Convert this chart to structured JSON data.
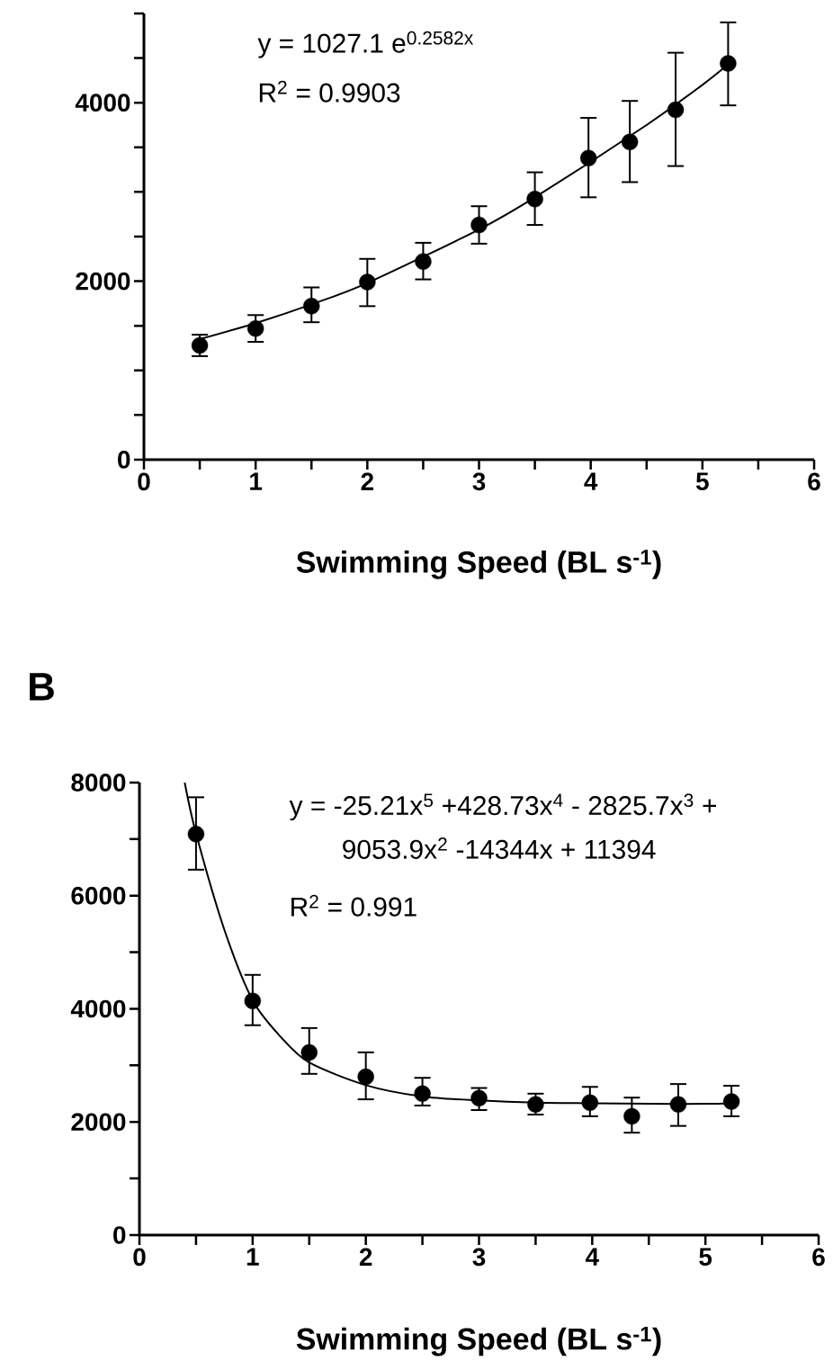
{
  "chart_data": [
    {
      "type": "scatter",
      "xlabel": "Swimming Speed (BL s$^{-1}$)",
      "xlim": [
        0,
        6
      ],
      "xticks": [
        0,
        {
          "value": 0.5,
          "label": null
        },
        1,
        {
          "value": 1.5,
          "label": null
        },
        2,
        {
          "value": 2.5,
          "label": null
        },
        3,
        {
          "value": 3.5,
          "label": null
        },
        4,
        {
          "value": 4.5,
          "label": null
        },
        5,
        {
          "value": 5.5,
          "label": null
        },
        6
      ],
      "ylim": [
        0,
        5000
      ],
      "yticks": [
        0,
        {
          "value": 500,
          "label": null
        },
        {
          "value": 1000,
          "label": null
        },
        {
          "value": 1500,
          "label": null
        },
        2000,
        {
          "value": 2500,
          "label": null
        },
        {
          "value": 3000,
          "label": null
        },
        {
          "value": 3500,
          "label": null
        },
        4000,
        {
          "value": 4500,
          "label": null
        },
        {
          "value": 5000,
          "label": null
        }
      ],
      "annotations": [
        "y = 1027.1 e$^{0.2582x}$",
        "R$^{2}$ = 0.9903"
      ],
      "series": [
        {
          "type": "scatter",
          "marker": "circle",
          "color": "#000000",
          "x": [
            0.5,
            1,
            1.5,
            2,
            2.5,
            3,
            3.5,
            3.98,
            4.35,
            4.76,
            5.23
          ],
          "values": [
            1280,
            1470,
            1720,
            1990,
            2220,
            2630,
            2920,
            3380,
            3560,
            3920,
            4440
          ],
          "errors": [
            [
              1160,
              1400
            ],
            [
              1320,
              1620
            ],
            [
              1540,
              1930
            ],
            [
              1720,
              2250
            ],
            [
              2020,
              2430
            ],
            [
              2420,
              2840
            ],
            [
              2630,
              3220
            ],
            [
              2940,
              3830
            ],
            [
              3110,
              4020
            ],
            [
              3290,
              4560
            ],
            [
              3970,
              4900
            ]
          ]
        },
        {
          "type": "line",
          "marker": "none",
          "color": "#000000",
          "x": [
            0.5,
            1,
            1.5,
            2,
            3,
            3.5,
            4.5,
            5,
            5.23
          ],
          "values": [
            1350,
            1530,
            1740,
            1980,
            2580,
            2940,
            3750,
            4200,
            4430
          ]
        }
      ]
    },
    {
      "type": "scatter",
      "title": "B",
      "xlabel": "Swimming Speed (BL s$^{-1}$)",
      "xlim": [
        0,
        6
      ],
      "xticks": [
        0,
        {
          "value": 0.5,
          "label": null
        },
        1,
        {
          "value": 1.5,
          "label": null
        },
        2,
        {
          "value": 2.5,
          "label": null
        },
        3,
        {
          "value": 3.5,
          "label": null
        },
        4,
        {
          "value": 4.5,
          "label": null
        },
        5,
        {
          "value": 5.5,
          "label": null
        },
        6
      ],
      "ylim": [
        0,
        8000
      ],
      "yticks": [
        0,
        {
          "value": 1000,
          "label": null
        },
        2000,
        {
          "value": 3000,
          "label": null
        },
        4000,
        {
          "value": 5000,
          "label": null
        },
        6000,
        {
          "value": 7000,
          "label": null
        },
        8000
      ],
      "annotations": [
        "y = -25.21x$^{5}$ +428.73x$^{4}$ - 2825.7x$^{3}$ +",
        "9053.9x$^{2}$ -14344x + 11394",
        "R$^{2}$ = 0.991"
      ],
      "series": [
        {
          "type": "scatter",
          "marker": "circle",
          "color": "#000000",
          "x": [
            0.5,
            1,
            1.5,
            2,
            2.5,
            3,
            3.5,
            3.98,
            4.35,
            4.76,
            5.23
          ],
          "values": [
            7090,
            4140,
            3230,
            2800,
            2500,
            2420,
            2310,
            2340,
            2100,
            2310,
            2360
          ],
          "errors": [
            [
              6460,
              7740
            ],
            [
              3710,
              4600
            ],
            [
              2850,
              3660
            ],
            [
              2400,
              3230
            ],
            [
              2290,
              2780
            ],
            [
              2210,
              2600
            ],
            [
              2130,
              2500
            ],
            [
              2100,
              2620
            ],
            [
              1810,
              2430
            ],
            [
              1930,
              2670
            ],
            [
              2100,
              2640
            ]
          ]
        },
        {
          "type": "line",
          "marker": "none",
          "color": "#000000",
          "x": [
            0.4,
            0.5,
            0.75,
            1,
            1.25,
            1.5,
            2,
            2.5,
            3,
            3.5,
            4,
            4.5,
            5,
            5.23
          ],
          "values": [
            8000,
            7100,
            5400,
            4150,
            3500,
            3050,
            2650,
            2450,
            2380,
            2340,
            2330,
            2320,
            2320,
            2330
          ]
        }
      ]
    }
  ]
}
